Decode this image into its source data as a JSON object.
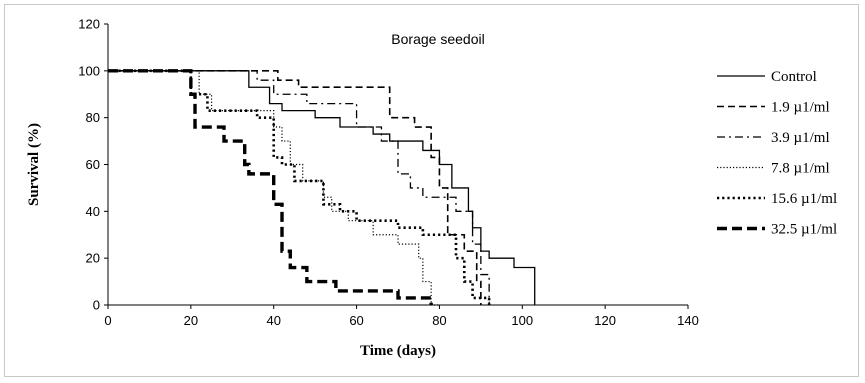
{
  "chart_data": {
    "type": "line",
    "title": "Borage seedoil",
    "xlabel": "Time (days)",
    "ylabel": "Survival (%)",
    "xlim": [
      0,
      140
    ],
    "ylim": [
      0,
      120
    ],
    "xticks": [
      0,
      20,
      40,
      60,
      80,
      100,
      120,
      140
    ],
    "yticks": [
      0,
      20,
      40,
      60,
      80,
      100,
      120
    ],
    "grid": false,
    "legend_position": "right",
    "series": [
      {
        "name": "Control",
        "style": "solid",
        "color": "#000000",
        "points": [
          [
            0,
            100
          ],
          [
            34,
            100
          ],
          [
            34,
            93
          ],
          [
            39,
            93
          ],
          [
            39,
            86
          ],
          [
            42,
            86
          ],
          [
            42,
            83
          ],
          [
            50,
            83
          ],
          [
            50,
            80
          ],
          [
            56,
            80
          ],
          [
            56,
            76
          ],
          [
            64,
            76
          ],
          [
            64,
            73
          ],
          [
            68,
            73
          ],
          [
            68,
            70
          ],
          [
            76,
            70
          ],
          [
            76,
            66
          ],
          [
            80,
            66
          ],
          [
            80,
            60
          ],
          [
            83,
            60
          ],
          [
            83,
            50
          ],
          [
            87,
            50
          ],
          [
            87,
            40
          ],
          [
            88,
            40
          ],
          [
            88,
            33
          ],
          [
            90,
            33
          ],
          [
            90,
            23
          ],
          [
            92,
            23
          ],
          [
            92,
            20
          ],
          [
            98,
            20
          ],
          [
            98,
            16
          ],
          [
            103,
            16
          ],
          [
            103,
            0
          ]
        ]
      },
      {
        "name": "1.9 µ1/ml",
        "style": "dashed",
        "color": "#000000",
        "points": [
          [
            0,
            100
          ],
          [
            41,
            100
          ],
          [
            41,
            96
          ],
          [
            46,
            96
          ],
          [
            46,
            93
          ],
          [
            68,
            93
          ],
          [
            68,
            80
          ],
          [
            74,
            80
          ],
          [
            74,
            76
          ],
          [
            78,
            76
          ],
          [
            78,
            63
          ],
          [
            80,
            63
          ],
          [
            80,
            50
          ],
          [
            82,
            50
          ],
          [
            82,
            30
          ],
          [
            86,
            30
          ],
          [
            86,
            23
          ],
          [
            89,
            23
          ],
          [
            89,
            10
          ],
          [
            90,
            10
          ],
          [
            90,
            0
          ]
        ]
      },
      {
        "name": "3.9 µ1/ml",
        "style": "dashdot",
        "color": "#000000",
        "points": [
          [
            0,
            100
          ],
          [
            36,
            100
          ],
          [
            36,
            96
          ],
          [
            40,
            96
          ],
          [
            40,
            90
          ],
          [
            48,
            90
          ],
          [
            48,
            86
          ],
          [
            60,
            86
          ],
          [
            60,
            76
          ],
          [
            66,
            76
          ],
          [
            66,
            70
          ],
          [
            70,
            70
          ],
          [
            70,
            56
          ],
          [
            73,
            56
          ],
          [
            73,
            50
          ],
          [
            76,
            50
          ],
          [
            76,
            46
          ],
          [
            84,
            46
          ],
          [
            84,
            40
          ],
          [
            88,
            40
          ],
          [
            88,
            26
          ],
          [
            90,
            26
          ],
          [
            90,
            13
          ],
          [
            92,
            13
          ],
          [
            92,
            0
          ]
        ]
      },
      {
        "name": "7.8 µ1/ml",
        "style": "dotted-fine",
        "color": "#000000",
        "points": [
          [
            0,
            100
          ],
          [
            22,
            100
          ],
          [
            22,
            90
          ],
          [
            25,
            90
          ],
          [
            25,
            83
          ],
          [
            40,
            83
          ],
          [
            40,
            76
          ],
          [
            42,
            76
          ],
          [
            42,
            70
          ],
          [
            44,
            70
          ],
          [
            44,
            60
          ],
          [
            47,
            60
          ],
          [
            47,
            53
          ],
          [
            52,
            53
          ],
          [
            52,
            46
          ],
          [
            54,
            46
          ],
          [
            54,
            40
          ],
          [
            58,
            40
          ],
          [
            58,
            36
          ],
          [
            64,
            36
          ],
          [
            64,
            30
          ],
          [
            70,
            30
          ],
          [
            70,
            26
          ],
          [
            75,
            26
          ],
          [
            75,
            20
          ],
          [
            76,
            20
          ],
          [
            76,
            10
          ],
          [
            78,
            10
          ],
          [
            78,
            0
          ],
          [
            80,
            0
          ]
        ]
      },
      {
        "name": "15.6 µ1/ml",
        "style": "dotted-heavy",
        "color": "#000000",
        "points": [
          [
            0,
            100
          ],
          [
            20,
            100
          ],
          [
            20,
            90
          ],
          [
            24,
            90
          ],
          [
            24,
            83
          ],
          [
            36,
            83
          ],
          [
            36,
            80
          ],
          [
            40,
            80
          ],
          [
            40,
            63
          ],
          [
            42,
            63
          ],
          [
            42,
            60
          ],
          [
            45,
            60
          ],
          [
            45,
            53
          ],
          [
            52,
            53
          ],
          [
            52,
            43
          ],
          [
            56,
            43
          ],
          [
            56,
            40
          ],
          [
            60,
            40
          ],
          [
            60,
            36
          ],
          [
            70,
            36
          ],
          [
            70,
            33
          ],
          [
            76,
            33
          ],
          [
            76,
            30
          ],
          [
            84,
            30
          ],
          [
            84,
            20
          ],
          [
            86,
            20
          ],
          [
            86,
            10
          ],
          [
            88,
            10
          ],
          [
            88,
            3
          ],
          [
            92,
            3
          ],
          [
            92,
            0
          ]
        ]
      },
      {
        "name": "32.5 µ1/ml",
        "style": "heavy-dashed",
        "color": "#000000",
        "points": [
          [
            0,
            100
          ],
          [
            20,
            100
          ],
          [
            20,
            90
          ],
          [
            21,
            90
          ],
          [
            21,
            76
          ],
          [
            28,
            76
          ],
          [
            28,
            70
          ],
          [
            33,
            70
          ],
          [
            33,
            60
          ],
          [
            34,
            60
          ],
          [
            34,
            56
          ],
          [
            40,
            56
          ],
          [
            40,
            43
          ],
          [
            42,
            43
          ],
          [
            42,
            23
          ],
          [
            44,
            23
          ],
          [
            44,
            16
          ],
          [
            48,
            16
          ],
          [
            48,
            10
          ],
          [
            55,
            10
          ],
          [
            55,
            6
          ],
          [
            70,
            6
          ],
          [
            70,
            3
          ],
          [
            78,
            3
          ],
          [
            78,
            0
          ]
        ]
      }
    ]
  }
}
